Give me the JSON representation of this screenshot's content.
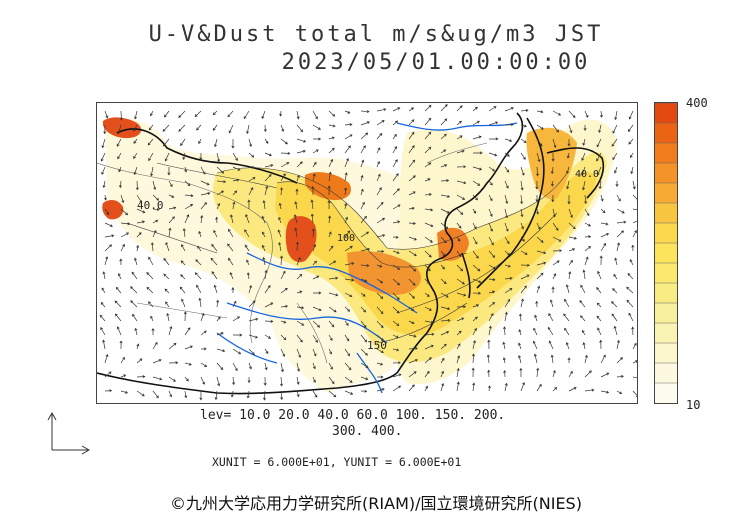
{
  "title": {
    "line1": "U-V&Dust total m/s&ug/m3 JST",
    "line2": "2023/05/01.00:00:00"
  },
  "colorbar": {
    "max_label": "400",
    "min_label": "10",
    "colors_top_to_bottom": [
      "#e44a10",
      "#ea6414",
      "#f07c1c",
      "#f49428",
      "#f7aa34",
      "#f9c440",
      "#fbd84e",
      "#fce45c",
      "#fbe96e",
      "#f9ec82",
      "#f8f09c",
      "#f9f3b4",
      "#fbf6cc",
      "#fdf9e0",
      "#fefcf0"
    ]
  },
  "levels": {
    "line1": "lev= 10.0 20.0 40.0 60.0 100. 150. 200.",
    "line2": "300. 400."
  },
  "units": "XUNIT = 6.000E+01, YUNIT = 6.000E+01",
  "map": {
    "labels": [
      "40.0",
      "150",
      "100",
      "40.0"
    ],
    "colors": {
      "coast": "#111111",
      "river": "#1565e0",
      "border": "#555555",
      "arrow": "#333333"
    }
  },
  "copyright": "©九州大学応用力学研究所(RIAM)/国立環境研究所(NIES)"
}
